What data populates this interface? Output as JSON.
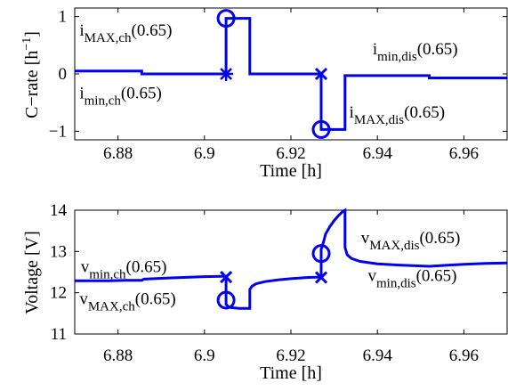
{
  "chart_data": [
    {
      "type": "line",
      "xlabel": "Time [h]",
      "ylabel": "C−rate [h",
      "ylabel_sup": "−1",
      "ylabel_close": "]",
      "xlim": [
        6.87,
        6.97
      ],
      "ylim": [
        -1.15,
        1.15
      ],
      "xticks": [
        "6.88",
        "6.9",
        "6.92",
        "6.94",
        "6.96"
      ],
      "yticks": [
        "1",
        "0",
        "−1"
      ],
      "yticks_values": [
        1,
        0,
        -1
      ],
      "grid": false,
      "line_color": "#0000ee",
      "series": [
        {
          "x": [
            6.87,
            6.8855,
            6.8855,
            6.905,
            6.905,
            6.9105,
            6.9105,
            6.927,
            6.927,
            6.9325,
            6.9325,
            6.952,
            6.952,
            6.97
          ],
          "y": [
            0.05,
            0.05,
            0.0,
            0.0,
            0.97,
            0.97,
            0.0,
            0.0,
            -0.97,
            -0.97,
            -0.03,
            -0.03,
            -0.07,
            -0.07
          ]
        }
      ],
      "markers": [
        {
          "shape": "circle",
          "x": 6.905,
          "y": 0.97
        },
        {
          "shape": "star",
          "x": 6.905,
          "y": 0.0
        },
        {
          "shape": "x",
          "x": 6.927,
          "y": 0.0
        },
        {
          "shape": "circle",
          "x": 6.927,
          "y": -0.97
        }
      ],
      "annotations": [
        {
          "base": "i",
          "sub": "MAX,ch",
          "tail": "(0.65)",
          "x": 6.8711,
          "y": 0.67
        },
        {
          "base": "i",
          "sub": "min,ch",
          "tail": "(0.65)",
          "x": 6.8711,
          "y": -0.43
        },
        {
          "base": "i",
          "sub": "min,dis",
          "tail": "(0.65)",
          "x": 6.9389,
          "y": 0.34
        },
        {
          "base": "i",
          "sub": "MAX,dis",
          "tail": "(0.65)",
          "x": 6.9335,
          "y": -0.76
        }
      ]
    },
    {
      "type": "line",
      "xlabel": "Time [h]",
      "ylabel": "Voltage [V]",
      "xlim": [
        6.87,
        6.97
      ],
      "ylim": [
        11.0,
        14.0
      ],
      "xticks": [
        "6.88",
        "6.9",
        "6.92",
        "6.94",
        "6.96"
      ],
      "yticks": [
        "14",
        "13",
        "12",
        "11"
      ],
      "yticks_values": [
        14,
        13,
        12,
        11
      ],
      "grid": false,
      "line_color": "#0000ee",
      "series": [
        {
          "x": [
            6.87,
            6.874,
            6.878,
            6.882,
            6.8855,
            6.886,
            6.89,
            6.895,
            6.9,
            6.905,
            6.905,
            6.9055,
            6.906,
            6.907,
            6.908,
            6.9105,
            6.9105,
            6.911,
            6.912,
            6.914,
            6.917,
            6.92,
            6.924,
            6.927,
            6.927,
            6.9275,
            6.928,
            6.929,
            6.93,
            6.931,
            6.932,
            6.9325,
            6.9325,
            6.933,
            6.934,
            6.936,
            6.94,
            6.945,
            6.952,
            6.952,
            6.955,
            6.96,
            6.965,
            6.97
          ],
          "y": [
            12.29,
            12.29,
            12.29,
            12.3,
            12.3,
            12.33,
            12.35,
            12.37,
            12.39,
            12.4,
            11.72,
            11.66,
            11.64,
            11.63,
            11.62,
            11.62,
            12.08,
            12.16,
            12.22,
            12.27,
            12.31,
            12.34,
            12.37,
            12.38,
            13.05,
            13.22,
            13.42,
            13.6,
            13.75,
            13.87,
            13.97,
            14.0,
            13.1,
            12.92,
            12.83,
            12.76,
            12.7,
            12.67,
            12.64,
            12.64,
            12.66,
            12.69,
            12.71,
            12.72
          ]
        }
      ],
      "markers": [
        {
          "shape": "x",
          "x": 6.905,
          "y": 12.38
        },
        {
          "shape": "circle",
          "x": 6.905,
          "y": 11.82
        },
        {
          "shape": "x",
          "x": 6.927,
          "y": 12.37
        },
        {
          "shape": "circle",
          "x": 6.927,
          "y": 12.95
        }
      ],
      "annotations": [
        {
          "base": "v",
          "sub": "min,ch",
          "tail": "(0.65)",
          "x": 6.8714,
          "y": 12.5
        },
        {
          "base": "v",
          "sub": "MAX,ch",
          "tail": "(0.65)",
          "x": 6.8711,
          "y": 11.72
        },
        {
          "base": "v",
          "sub": "MAX,dis",
          "tail": "(0.65)",
          "x": 6.9362,
          "y": 13.2
        },
        {
          "base": "v",
          "sub": "min,dis",
          "tail": "(0.65)",
          "x": 6.9378,
          "y": 12.28
        }
      ]
    }
  ]
}
